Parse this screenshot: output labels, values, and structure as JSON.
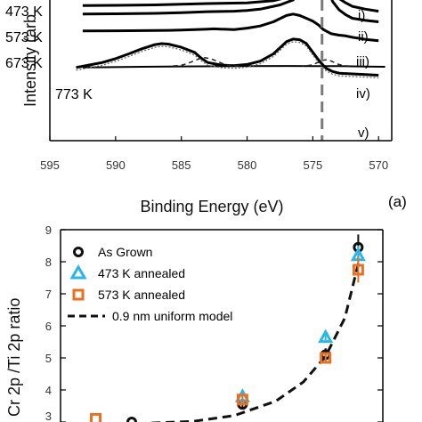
{
  "chart_data": [
    {
      "type": "line",
      "xlabel": "Binding Energy (eV)",
      "ylabel": "Intensity (arb",
      "panel_label": "(a)",
      "xlim": [
        595.0,
        569.0
      ],
      "x_ticks": [
        595,
        590,
        585,
        580,
        575,
        570
      ],
      "reference_line_x": 574.3,
      "curve_labels": [
        "473 K",
        "573 K",
        "673 K",
        "773 K"
      ],
      "roman_labels": [
        "i)",
        "ii)",
        "iii)",
        "iv)",
        "v)"
      ],
      "series": [
        {
          "label": "i)",
          "x": [
            592.5,
            590,
            587,
            585,
            583,
            580,
            578,
            576.5,
            575.5,
            575,
            574.4,
            574,
            573.5,
            573,
            572.5,
            572,
            571,
            570
          ],
          "y": [
            0.96,
            0.962,
            0.965,
            0.97,
            0.975,
            0.98,
            0.995,
            1.03,
            1.15,
            1.3,
            1.3,
            1.14,
            1.05,
            1.01,
            0.98,
            0.955,
            0.935,
            0.92
          ]
        },
        {
          "label": "ii)",
          "x": [
            592.5,
            590,
            587,
            585,
            583,
            581,
            580,
            579,
            577.5,
            576.5,
            575.5,
            575,
            574.4,
            574,
            573.5,
            573,
            572.5,
            572,
            571,
            570
          ],
          "y": [
            0.9,
            0.902,
            0.905,
            0.91,
            0.917,
            0.92,
            0.925,
            0.935,
            0.965,
            1.0,
            1.1,
            1.28,
            1.28,
            1.15,
            0.99,
            0.93,
            0.895,
            0.87,
            0.855,
            0.845
          ]
        },
        {
          "label": "iii)",
          "x": [
            592.5,
            590,
            588,
            586,
            585,
            584,
            583,
            582.5,
            582,
            581,
            580,
            579,
            578,
            577,
            576.5,
            576,
            575.5,
            575,
            574.6,
            574.2,
            573.6,
            573,
            572.5,
            572,
            571,
            570
          ],
          "y": [
            0.78,
            0.781,
            0.782,
            0.784,
            0.786,
            0.789,
            0.793,
            0.795,
            0.793,
            0.79,
            0.8,
            0.815,
            0.845,
            0.89,
            0.9,
            0.89,
            0.87,
            0.85,
            0.825,
            0.79,
            0.76,
            0.75,
            0.745,
            0.735,
            0.72,
            0.71
          ]
        },
        {
          "label": "iv)",
          "x": [
            593,
            592,
            591,
            590,
            589,
            588,
            587,
            586.5,
            586,
            585,
            584,
            583.5,
            583,
            582,
            581,
            580,
            579,
            578,
            577,
            576.5,
            576,
            575.5,
            575,
            574.5,
            574,
            573.5,
            573,
            572,
            571,
            570
          ],
          "y": [
            0.52,
            0.538,
            0.556,
            0.583,
            0.617,
            0.653,
            0.683,
            0.69,
            0.687,
            0.664,
            0.628,
            0.588,
            0.556,
            0.538,
            0.533,
            0.542,
            0.565,
            0.617,
            0.704,
            0.722,
            0.718,
            0.691,
            0.628,
            0.565,
            0.515,
            0.492,
            0.48,
            0.475,
            0.47,
            0.465
          ]
        },
        {
          "label": "v)",
          "x": [
            592.5,
            588,
            585,
            582,
            580,
            577,
            575,
            573,
            571,
            569.5
          ],
          "y": [
            0.52,
            0.525,
            0.528,
            0.529,
            0.53,
            0.531,
            0.53,
            0.53,
            0.527,
            0.525
          ]
        }
      ]
    },
    {
      "type": "scatter",
      "ylabel": "Cr 2p /Ti 2p ratio",
      "ylim": [
        3.0,
        9.0
      ],
      "y_ticks": [
        3,
        4,
        5,
        6,
        7,
        8,
        9
      ],
      "x_range": [
        0.0,
        1.0
      ],
      "legend_position": "top-left",
      "series": [
        {
          "name": "As Grown",
          "marker": "circle",
          "color": "#111111",
          "x": [
            0.18,
            0.58,
            0.88,
            0.998
          ],
          "y": [
            3.0,
            3.55,
            5.1,
            8.45
          ],
          "err": [
            0.0,
            0.12,
            0.2,
            0.4
          ]
        },
        {
          "name": "473 K annealed",
          "marker": "triangle",
          "color": "#2bb5e8",
          "x": [
            0.58,
            0.88,
            0.998
          ],
          "y": [
            3.8,
            5.65,
            8.2
          ],
          "err": [
            0.1,
            0.1,
            0.3
          ]
        },
        {
          "name": "573 K annealed",
          "marker": "square",
          "color": "#e8701e",
          "x": [
            0.05,
            0.58,
            0.88,
            0.998
          ],
          "y": [
            3.1,
            3.7,
            5.0,
            7.75
          ],
          "err": [
            0.0,
            0.12,
            0.15,
            0.4
          ]
        },
        {
          "name": "0.9 nm uniform model",
          "marker": "dashed-line",
          "color": "#111111",
          "x": [
            0.2,
            0.4,
            0.55,
            0.7,
            0.8,
            0.88,
            0.95,
            1.0
          ],
          "y": [
            2.95,
            3.02,
            3.2,
            3.65,
            4.25,
            5.05,
            6.25,
            8.0
          ]
        }
      ]
    }
  ]
}
